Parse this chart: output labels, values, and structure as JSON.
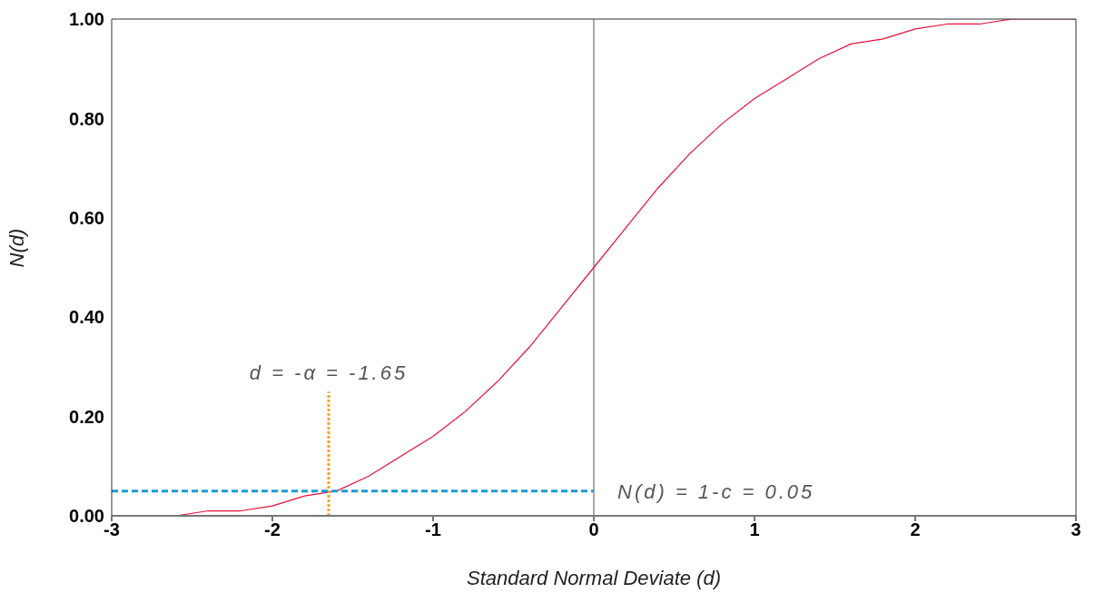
{
  "chart_data": {
    "type": "line",
    "xlabel": "Standard Normal Deviate (d)",
    "ylabel": "N(d)",
    "xlim": [
      -3,
      3
    ],
    "xticks": [
      -3,
      -2,
      -1,
      0,
      1,
      2,
      3
    ],
    "ylim": [
      0,
      1
    ],
    "yticks": [
      {
        "value": 0,
        "label": "0.00"
      },
      {
        "value": 0.2,
        "label": "0.20"
      },
      {
        "value": 0.4,
        "label": "0.40"
      },
      {
        "value": 0.6,
        "label": "0.60"
      },
      {
        "value": 0.8,
        "label": "0.80"
      },
      {
        "value": 1,
        "label": "1.00"
      }
    ],
    "grid": false,
    "legend": false,
    "marker": "none",
    "series": [
      {
        "color": "#e8103a",
        "line_style": "solid",
        "x": [
          -3,
          -2.8,
          -2.6,
          -2.4,
          -2.2,
          -2,
          -1.8,
          -1.6,
          -1.4,
          -1.2,
          -1,
          -0.8,
          -0.6,
          -0.4,
          -0.2,
          0,
          0.2,
          0.4,
          0.6,
          0.8,
          1,
          1.2,
          1.4,
          1.6,
          1.8,
          2,
          2.2,
          2.4,
          2.6,
          2.8,
          3
        ],
        "values": [
          0.0,
          0.0,
          0.0,
          0.01,
          0.01,
          0.02,
          0.04,
          0.05,
          0.08,
          0.12,
          0.16,
          0.21,
          0.27,
          0.34,
          0.42,
          0.5,
          0.58,
          0.66,
          0.73,
          0.79,
          0.84,
          0.88,
          0.92,
          0.95,
          0.96,
          0.98,
          0.99,
          0.99,
          1.0,
          1.0,
          1.0
        ]
      },
      {
        "color": "#f5a623",
        "line_style": "dotted",
        "x": [
          -1.65,
          -1.65
        ],
        "values": [
          0,
          0.25
        ]
      },
      {
        "color": "#1a9ad6",
        "line_style": "dashed",
        "x": [
          -3,
          0
        ],
        "values": [
          0.05,
          0.05
        ]
      }
    ],
    "ref_lines": [
      {
        "axis": "x",
        "value": 0,
        "color": "#555555"
      }
    ],
    "annotations": [
      "d = -α = -1.65",
      "N(d) = 1-c = 0.05"
    ]
  }
}
